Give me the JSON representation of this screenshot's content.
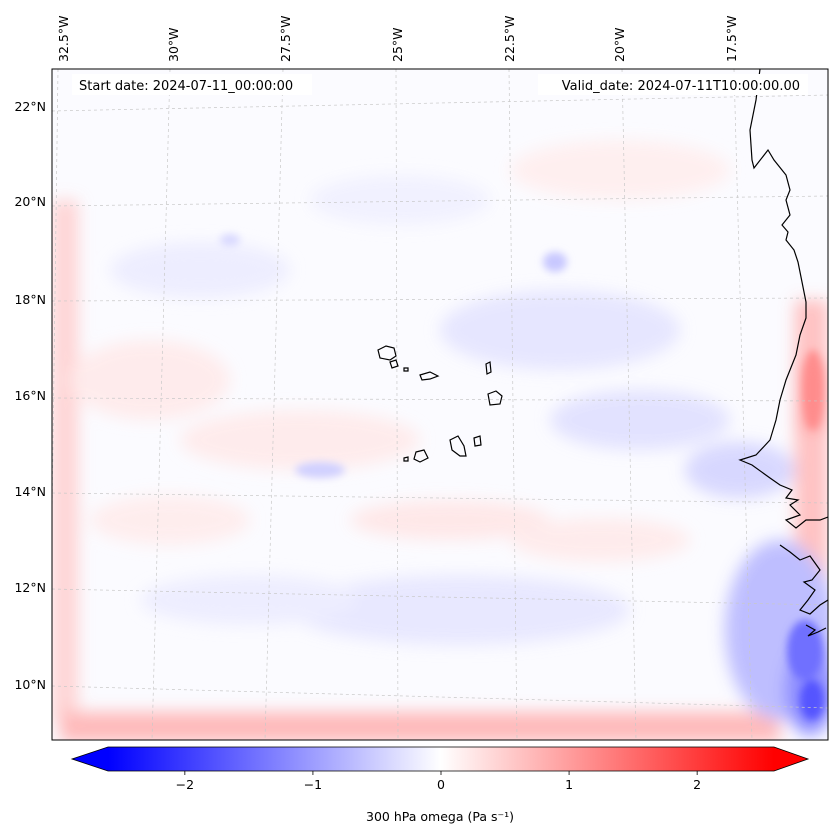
{
  "map": {
    "title_left": "Start date: 2024-07-11_00:00:00",
    "title_right": "Valid_date: 2024-07-11T10:00:00.00",
    "lon_labels": [
      "32.5°W",
      "30°W",
      "27.5°W",
      "25°W",
      "22.5°W",
      "20°W",
      "17.5°W"
    ],
    "lat_labels": [
      "22°N",
      "20°N",
      "18°N",
      "16°N",
      "14°N",
      "12°N",
      "10°N"
    ],
    "colorbar": {
      "label": "300 hPa omega (Pa s⁻¹)",
      "ticks": [
        "−2",
        "−1",
        "0",
        "1",
        "2"
      ],
      "tick_values": [
        -2,
        -1,
        0,
        1,
        2
      ],
      "vmin": -2.6,
      "vmax": 2.6,
      "color_low": "#0000ff",
      "color_mid": "#ffffff",
      "color_high": "#ff0000"
    }
  }
}
